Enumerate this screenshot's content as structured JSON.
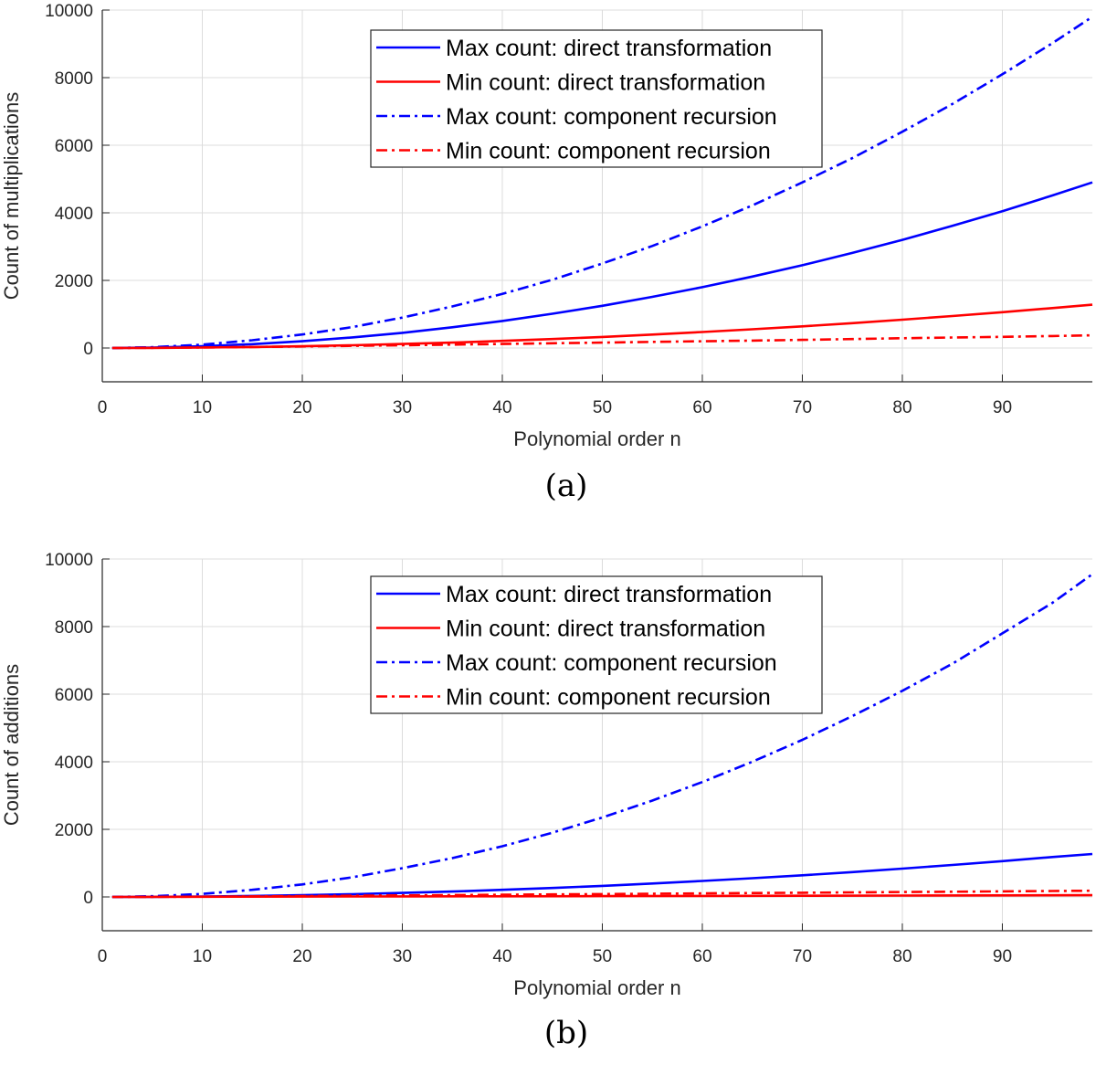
{
  "chart_data": [
    {
      "type": "line",
      "caption": "(a)",
      "title": "",
      "xlabel": "Polynomial order n",
      "ylabel": "Count of multiplications",
      "xlim": [
        0,
        99
      ],
      "ylim": [
        -1000,
        10000
      ],
      "xticks": [
        0,
        10,
        20,
        30,
        40,
        50,
        60,
        70,
        80,
        90
      ],
      "yticks": [
        0,
        2000,
        4000,
        6000,
        8000,
        10000
      ],
      "grid": true,
      "legend": "top-center",
      "series": [
        {
          "name": "Max count: direct transformation",
          "color": "#0000ff",
          "style": "solid",
          "x": [
            1,
            5,
            10,
            15,
            20,
            25,
            30,
            35,
            40,
            45,
            50,
            55,
            60,
            65,
            70,
            75,
            80,
            85,
            90,
            95,
            99
          ],
          "y": [
            1,
            13,
            50,
            113,
            200,
            313,
            450,
            613,
            800,
            1013,
            1250,
            1513,
            1800,
            2113,
            2450,
            2813,
            3200,
            3613,
            4050,
            4513,
            4900
          ]
        },
        {
          "name": "Min count: direct transformation",
          "color": "#ff0000",
          "style": "solid",
          "x": [
            1,
            5,
            10,
            15,
            20,
            25,
            30,
            35,
            40,
            45,
            50,
            55,
            60,
            65,
            70,
            75,
            80,
            85,
            90,
            95,
            99
          ],
          "y": [
            1,
            3,
            13,
            30,
            52,
            82,
            118,
            160,
            210,
            265,
            327,
            396,
            472,
            553,
            641,
            736,
            838,
            946,
            1060,
            1180,
            1280
          ]
        },
        {
          "name": "Max count: component recursion",
          "color": "#0000ff",
          "style": "dashdot",
          "x": [
            1,
            5,
            10,
            15,
            20,
            25,
            30,
            35,
            40,
            45,
            50,
            55,
            60,
            65,
            70,
            75,
            80,
            85,
            90,
            95,
            99
          ],
          "y": [
            1,
            25,
            100,
            230,
            400,
            620,
            900,
            1230,
            1600,
            2020,
            2500,
            3020,
            3600,
            4220,
            4900,
            5620,
            6400,
            7220,
            8100,
            9020,
            9800
          ]
        },
        {
          "name": "Min count: component recursion",
          "color": "#ff0000",
          "style": "dashdot",
          "x": [
            1,
            5,
            10,
            15,
            20,
            25,
            30,
            35,
            40,
            45,
            50,
            55,
            60,
            65,
            70,
            75,
            80,
            85,
            90,
            95,
            99
          ],
          "y": [
            1,
            5,
            15,
            30,
            45,
            65,
            80,
            100,
            120,
            140,
            160,
            180,
            200,
            220,
            240,
            265,
            290,
            310,
            330,
            355,
            375
          ]
        }
      ]
    },
    {
      "type": "line",
      "caption": "(b)",
      "title": "",
      "xlabel": "Polynomial order n",
      "ylabel": "Count of additions",
      "xlim": [
        0,
        99
      ],
      "ylim": [
        -1000,
        10000
      ],
      "xticks": [
        0,
        10,
        20,
        30,
        40,
        50,
        60,
        70,
        80,
        90
      ],
      "yticks": [
        0,
        2000,
        4000,
        6000,
        8000,
        10000
      ],
      "grid": true,
      "legend": "top-center",
      "series": [
        {
          "name": "Max count: direct transformation",
          "color": "#0000ff",
          "style": "solid",
          "x": [
            1,
            5,
            10,
            15,
            20,
            25,
            30,
            35,
            40,
            45,
            50,
            55,
            60,
            65,
            70,
            75,
            80,
            85,
            90,
            95,
            99
          ],
          "y": [
            0,
            3,
            13,
            30,
            52,
            82,
            118,
            160,
            210,
            265,
            327,
            396,
            472,
            553,
            641,
            736,
            838,
            946,
            1060,
            1180,
            1270
          ]
        },
        {
          "name": "Min count: direct transformation",
          "color": "#ff0000",
          "style": "solid",
          "x": [
            1,
            10,
            20,
            30,
            40,
            50,
            60,
            70,
            80,
            90,
            99
          ],
          "y": [
            0,
            5,
            10,
            15,
            20,
            25,
            30,
            35,
            40,
            45,
            50
          ]
        },
        {
          "name": "Max count: component recursion",
          "color": "#0000ff",
          "style": "dashdot",
          "x": [
            1,
            5,
            10,
            15,
            20,
            25,
            30,
            35,
            40,
            45,
            50,
            55,
            60,
            65,
            70,
            75,
            80,
            85,
            90,
            95,
            99
          ],
          "y": [
            0,
            22,
            90,
            210,
            370,
            580,
            850,
            1150,
            1500,
            1900,
            2350,
            2850,
            3400,
            4000,
            4650,
            5350,
            6100,
            6900,
            7800,
            8700,
            9550
          ]
        },
        {
          "name": "Min count: component recursion",
          "color": "#ff0000",
          "style": "dashdot",
          "x": [
            1,
            5,
            10,
            15,
            20,
            25,
            30,
            35,
            40,
            45,
            50,
            55,
            60,
            65,
            70,
            75,
            80,
            85,
            90,
            95,
            99
          ],
          "y": [
            0,
            3,
            8,
            15,
            25,
            35,
            45,
            55,
            65,
            75,
            85,
            95,
            105,
            115,
            125,
            135,
            145,
            155,
            165,
            175,
            185
          ]
        }
      ]
    }
  ]
}
